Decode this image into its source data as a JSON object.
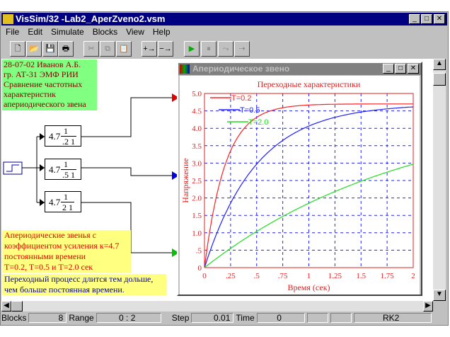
{
  "window": {
    "title": "VisSim/32 -Lab2_AperZveno2.vsm"
  },
  "menu": [
    "File",
    "Edit",
    "Simulate",
    "Blocks",
    "View",
    "Help"
  ],
  "toolbar": [
    "new",
    "open",
    "save",
    "print",
    "cut",
    "copy",
    "paste",
    "zoom-in",
    "zoom-out",
    "go",
    "pause",
    "step",
    "continue"
  ],
  "notes": {
    "header": [
      "28-07-02 Иванов А.Б.",
      "гр. АТ-31 ЭМФ РИИ",
      "Сравнение частотных",
      "характеристик",
      "апериодического звена"
    ],
    "description": [
      "Апериодические звенья с",
      "коэффициентом усиления к=4.7",
      "постоянными времени",
      "T=0.2, T=0.5 и T=2.0 сек"
    ],
    "conclusion": [
      "Переходный процесс длится тем дольше,",
      "чем больше постоянная времени."
    ]
  },
  "blocks": [
    {
      "gain": "4.7",
      "num": "1",
      "den": ".2 1"
    },
    {
      "gain": "4.7",
      "num": "1",
      "den": ".5 1"
    },
    {
      "gain": "4.7",
      "num": "1",
      "den": "2 1"
    }
  ],
  "plot_window": {
    "title": "Апериодическое звено"
  },
  "chart_data": {
    "type": "line",
    "title": "Переходные характеристики",
    "xlabel": "Время (сек)",
    "ylabel": "Напряжение",
    "xlim": [
      0,
      2
    ],
    "ylim": [
      0,
      5
    ],
    "xticks": [
      "0",
      ".25",
      ".5",
      ".75",
      "1",
      "1.25",
      "1.5",
      "1.75",
      "2"
    ],
    "yticks": [
      "0",
      ".5",
      "1.0",
      "1.5",
      "2.0",
      "2.5",
      "3.0",
      "3.5",
      "4.0",
      "4.5",
      "5.0"
    ],
    "grid": true,
    "legend_placement": "top-left",
    "gain": 4.7,
    "series": [
      {
        "name": "T=0.2",
        "T": 0.2,
        "color": "#ff2020"
      },
      {
        "name": "T=0.5",
        "T": 0.5,
        "color": "#2020ff"
      },
      {
        "name": "T=2.0",
        "T": 2.0,
        "color": "#20e020"
      }
    ]
  },
  "status": {
    "blocks_label": "Blocks",
    "blocks": "8",
    "range_label": "Range",
    "range": "0 : 2",
    "step_label": "Step",
    "step": "0.01",
    "time_label": "Time",
    "time": "0",
    "method": "RK2"
  },
  "colors": {
    "titlebar": "#000080",
    "note_green": "#80ff80",
    "note_yellow": "#ffff80"
  }
}
